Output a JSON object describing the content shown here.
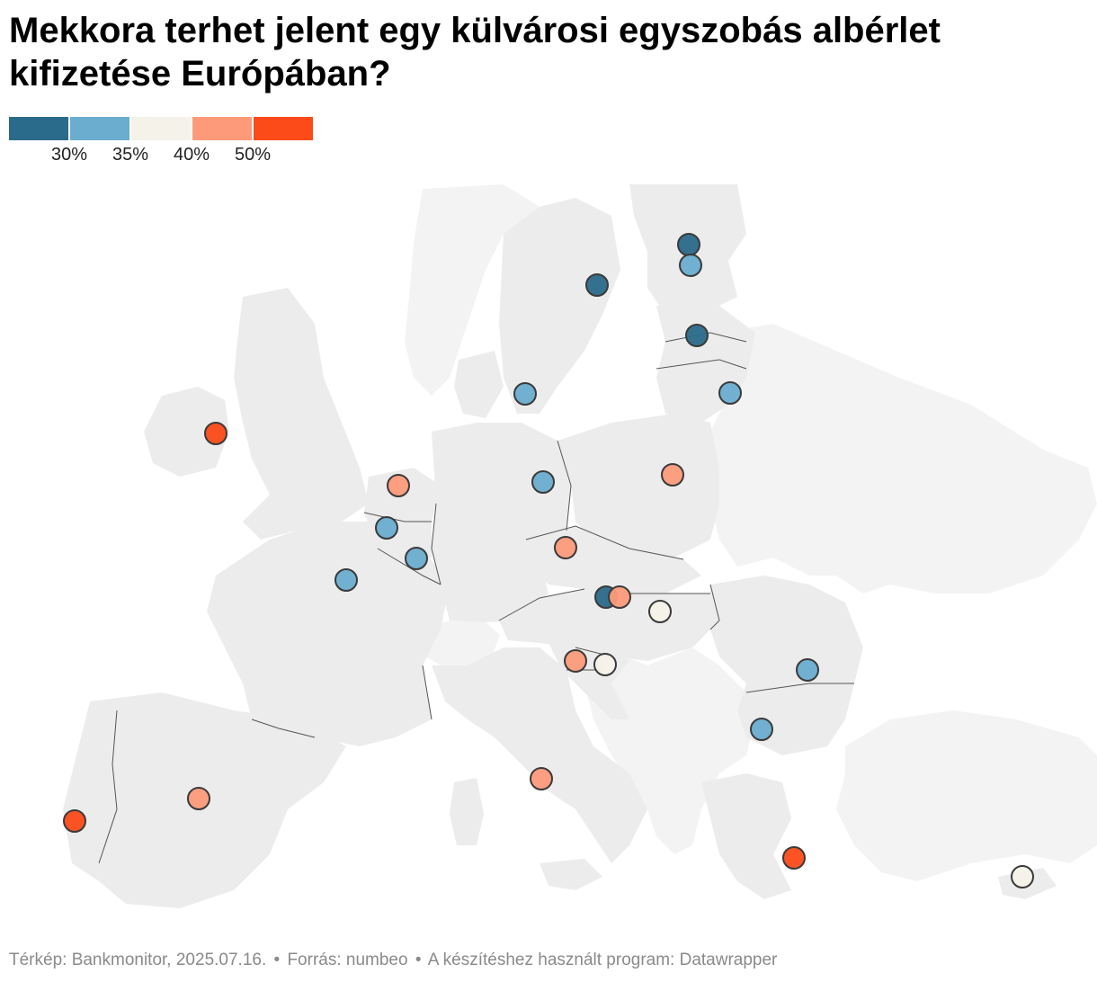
{
  "title": "Mekkora terhet jelent egy külvárosi egyszobás albérlet kifizetése Európában?",
  "legend": {
    "colors": [
      "#2a6a8a",
      "#6aadcf",
      "#f5f3e9",
      "#fd9a7a",
      "#fc4a18"
    ],
    "ticks": [
      "30%",
      "35%",
      "40%",
      "50%"
    ]
  },
  "map": {
    "land_color": "#ececec",
    "nondata_land_color": "#f3f3f3",
    "border_color": "#555555",
    "markers": [
      {
        "bin": 0
      },
      {
        "bin": 1
      },
      {
        "bin": 0
      },
      {
        "bin": 0
      },
      {
        "bin": 1
      },
      {
        "bin": 1
      },
      {
        "bin": 4
      },
      {
        "bin": 3
      },
      {
        "bin": 1
      },
      {
        "bin": 3
      },
      {
        "bin": 1
      },
      {
        "bin": 1
      },
      {
        "bin": 1
      },
      {
        "bin": 3
      },
      {
        "bin": 0
      },
      {
        "bin": 3
      },
      {
        "bin": 2
      },
      {
        "bin": 3
      },
      {
        "bin": 2
      },
      {
        "bin": 1
      },
      {
        "bin": 1
      },
      {
        "bin": 3
      },
      {
        "bin": 3
      },
      {
        "bin": 4
      },
      {
        "bin": 4
      },
      {
        "bin": 2
      }
    ]
  },
  "footer": {
    "map_credit": "Térkép: Bankmonitor, 2025.07.16.",
    "source": "Forrás: numbeo",
    "tool": "A készítéshez használt program: Datawrapper",
    "separator": "•"
  }
}
